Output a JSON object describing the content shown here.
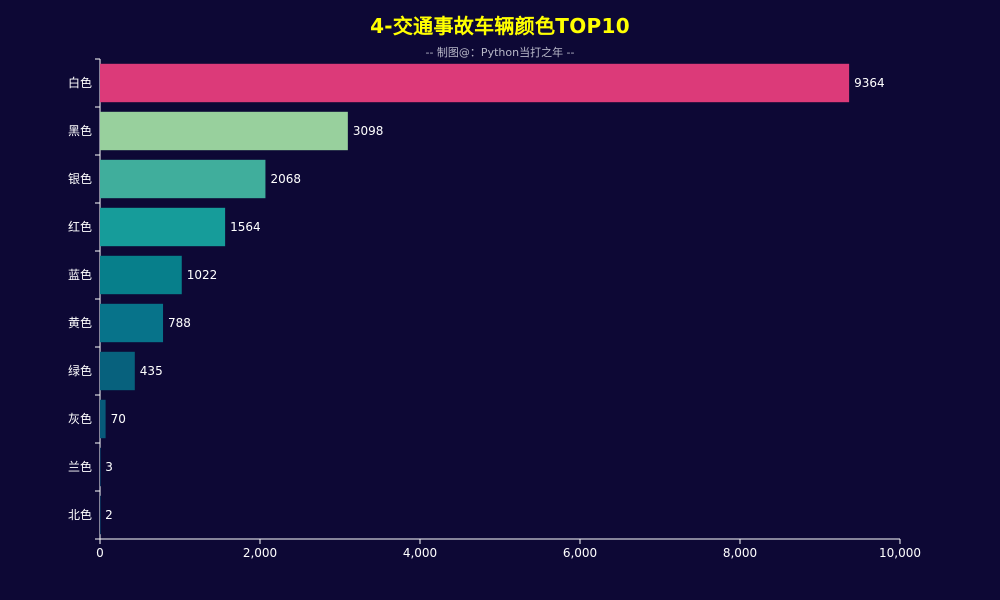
{
  "chart_data": {
    "type": "bar",
    "orientation": "horizontal",
    "title": "4-交通事故车辆颜色TOP10",
    "subtitle": "-- 制图@：Python当打之年 --",
    "categories": [
      "白色",
      "黑色",
      "银色",
      "红色",
      "蓝色",
      "黄色",
      "绿色",
      "灰色",
      "兰色",
      "北色"
    ],
    "values": [
      9364,
      3098,
      2068,
      1564,
      1022,
      788,
      435,
      70,
      3,
      2
    ],
    "xlim": [
      0,
      10000
    ],
    "x_ticks": [
      "0",
      "2,000",
      "4,000",
      "6,000",
      "8,000",
      "10,000"
    ],
    "x_tick_values": [
      0,
      2000,
      4000,
      6000,
      8000,
      10000
    ],
    "grid": false,
    "bar_colors": [
      "#dc3a79",
      "#98d09d",
      "#40ae9c",
      "#169c9a",
      "#077f8b",
      "#07738a",
      "#07617d",
      "#075a79",
      "#07537a",
      "#074f78"
    ],
    "title_color": "#ffff00",
    "background_color": "#0d0835"
  }
}
